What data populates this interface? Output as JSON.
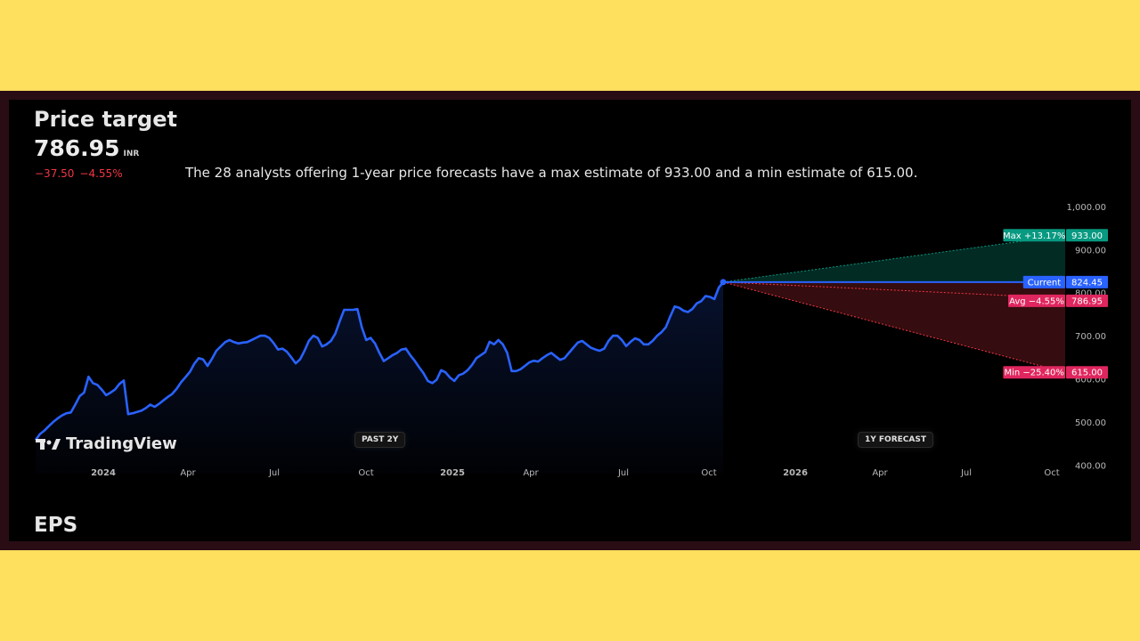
{
  "header": {
    "title": "Price target",
    "price": "786.95",
    "currency": "INR",
    "change_abs": "−37.50",
    "change_pct": "−4.55%",
    "description": "The 28 analysts offering 1-year price forecasts have a max estimate of 933.00 and a min estimate of 615.00."
  },
  "brand": {
    "name": "TradingView"
  },
  "section_next": "EPS",
  "pills": {
    "past": "PAST 2Y",
    "forecast": "1Y FORECAST"
  },
  "colors": {
    "line": "#2962ff",
    "max": "#089981",
    "avg_min": "#f23645",
    "current": "#2962ff",
    "change_text": "#f23645"
  },
  "chart_data": {
    "type": "line",
    "x_tick_labels": [
      "2024",
      "Apr",
      "Jul",
      "Oct",
      "2025",
      "Apr",
      "Jul",
      "Oct",
      "2026",
      "Apr",
      "Jul",
      "Oct"
    ],
    "y_ticks": [
      400,
      500,
      600,
      700,
      800,
      900,
      1000
    ],
    "y_tick_labels": [
      "400.00",
      "500.00",
      "600.00",
      "700.00",
      "800.00",
      "900.00",
      "1,000.00"
    ],
    "ylim": [
      380,
      1010
    ],
    "history": {
      "start": "2023-11",
      "end": "2025-10",
      "values": [
        458,
        472,
        480,
        490,
        500,
        508,
        515,
        520,
        522,
        540,
        560,
        568,
        605,
        590,
        586,
        575,
        562,
        568,
        575,
        588,
        596,
        518,
        520,
        523,
        526,
        532,
        540,
        535,
        542,
        550,
        558,
        565,
        577,
        592,
        604,
        616,
        635,
        648,
        645,
        630,
        646,
        665,
        675,
        685,
        690,
        685,
        682,
        684,
        685,
        690,
        695,
        700,
        700,
        695,
        683,
        668,
        670,
        663,
        650,
        636,
        645,
        665,
        688,
        700,
        695,
        675,
        680,
        688,
        705,
        734,
        760,
        760,
        760,
        762,
        720,
        690,
        695,
        682,
        660,
        641,
        648,
        655,
        660,
        668,
        670,
        655,
        642,
        627,
        613,
        595,
        590,
        598,
        620,
        615,
        603,
        595,
        608,
        612,
        620,
        632,
        648,
        655,
        662,
        686,
        680,
        690,
        680,
        660,
        618,
        618,
        622,
        630,
        638,
        642,
        640,
        648,
        655,
        660,
        652,
        644,
        648,
        660,
        672,
        684,
        688,
        680,
        672,
        668,
        665,
        670,
        688,
        700,
        700,
        690,
        676,
        686,
        694,
        690,
        680,
        680,
        688,
        700,
        708,
        720,
        745,
        768,
        765,
        758,
        755,
        762,
        775,
        780,
        792,
        790,
        785,
        812,
        824.45
      ]
    },
    "current": 824.45,
    "targets": [
      {
        "name": "Max",
        "pct": "+13.17%",
        "value": 933.0,
        "label": "933.00"
      },
      {
        "name": "Avg",
        "pct": "−4.55%",
        "value": 786.95,
        "label": "786.95"
      },
      {
        "name": "Min",
        "pct": "−25.40%",
        "value": 615.0,
        "label": "615.00"
      }
    ],
    "current_label": {
      "name": "Current",
      "label": "824.45"
    }
  }
}
